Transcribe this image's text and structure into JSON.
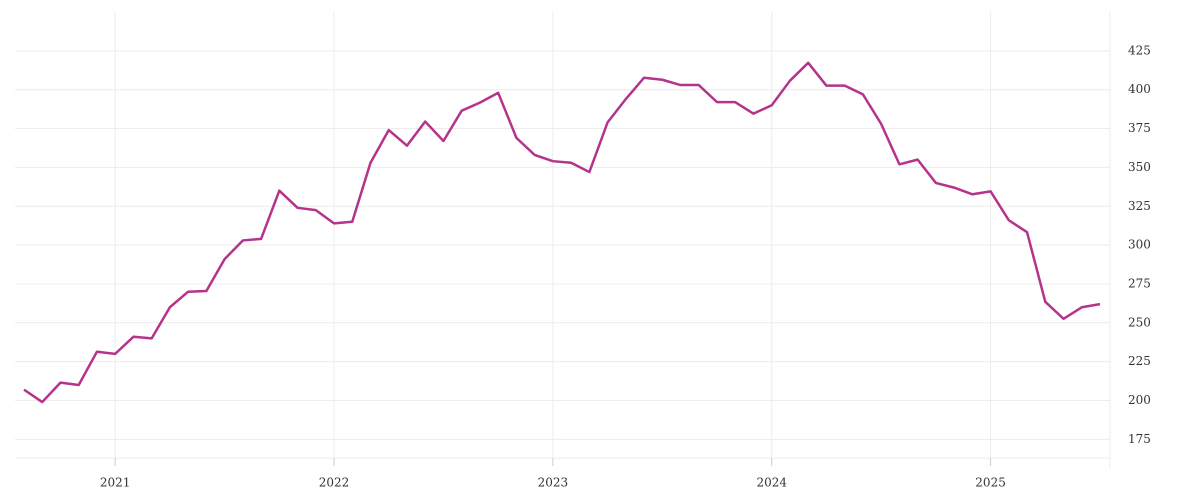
{
  "chart_data": {
    "type": "line",
    "categories": [
      null,
      null,
      null,
      null,
      null,
      "2021",
      null,
      null,
      null,
      null,
      null,
      null,
      null,
      null,
      null,
      null,
      null,
      "2022",
      null,
      null,
      null,
      null,
      null,
      null,
      null,
      null,
      null,
      null,
      null,
      "2023",
      null,
      null,
      null,
      null,
      null,
      null,
      null,
      null,
      null,
      null,
      null,
      "2024",
      null,
      null,
      null,
      null,
      null,
      null,
      null,
      null,
      null,
      null,
      null,
      "2025",
      null,
      null,
      null,
      null,
      null,
      null
    ],
    "series": [
      {
        "color": "#b5338a",
        "values": [
          207,
          199,
          211.5,
          210,
          231.4,
          230,
          241,
          240,
          260,
          270,
          270.5,
          291,
          303,
          304,
          335,
          324,
          322.5,
          314,
          315,
          353,
          374,
          364,
          379.5,
          367,
          386.5,
          391.7,
          398,
          369,
          358,
          354,
          353,
          347,
          379,
          394,
          407.7,
          406.4,
          403,
          403,
          392,
          392,
          384.6,
          390,
          405.8,
          417.3,
          402.6,
          402.6,
          397,
          378,
          352,
          355,
          340,
          337,
          332.7,
          334.6,
          316,
          308.3,
          263.5,
          252.6,
          260,
          262
        ]
      }
    ],
    "ylim": [
      163,
      450
    ],
    "yticks": [
      175,
      200,
      225,
      250,
      275,
      300,
      325,
      350,
      375,
      400,
      425
    ],
    "grid": true
  }
}
